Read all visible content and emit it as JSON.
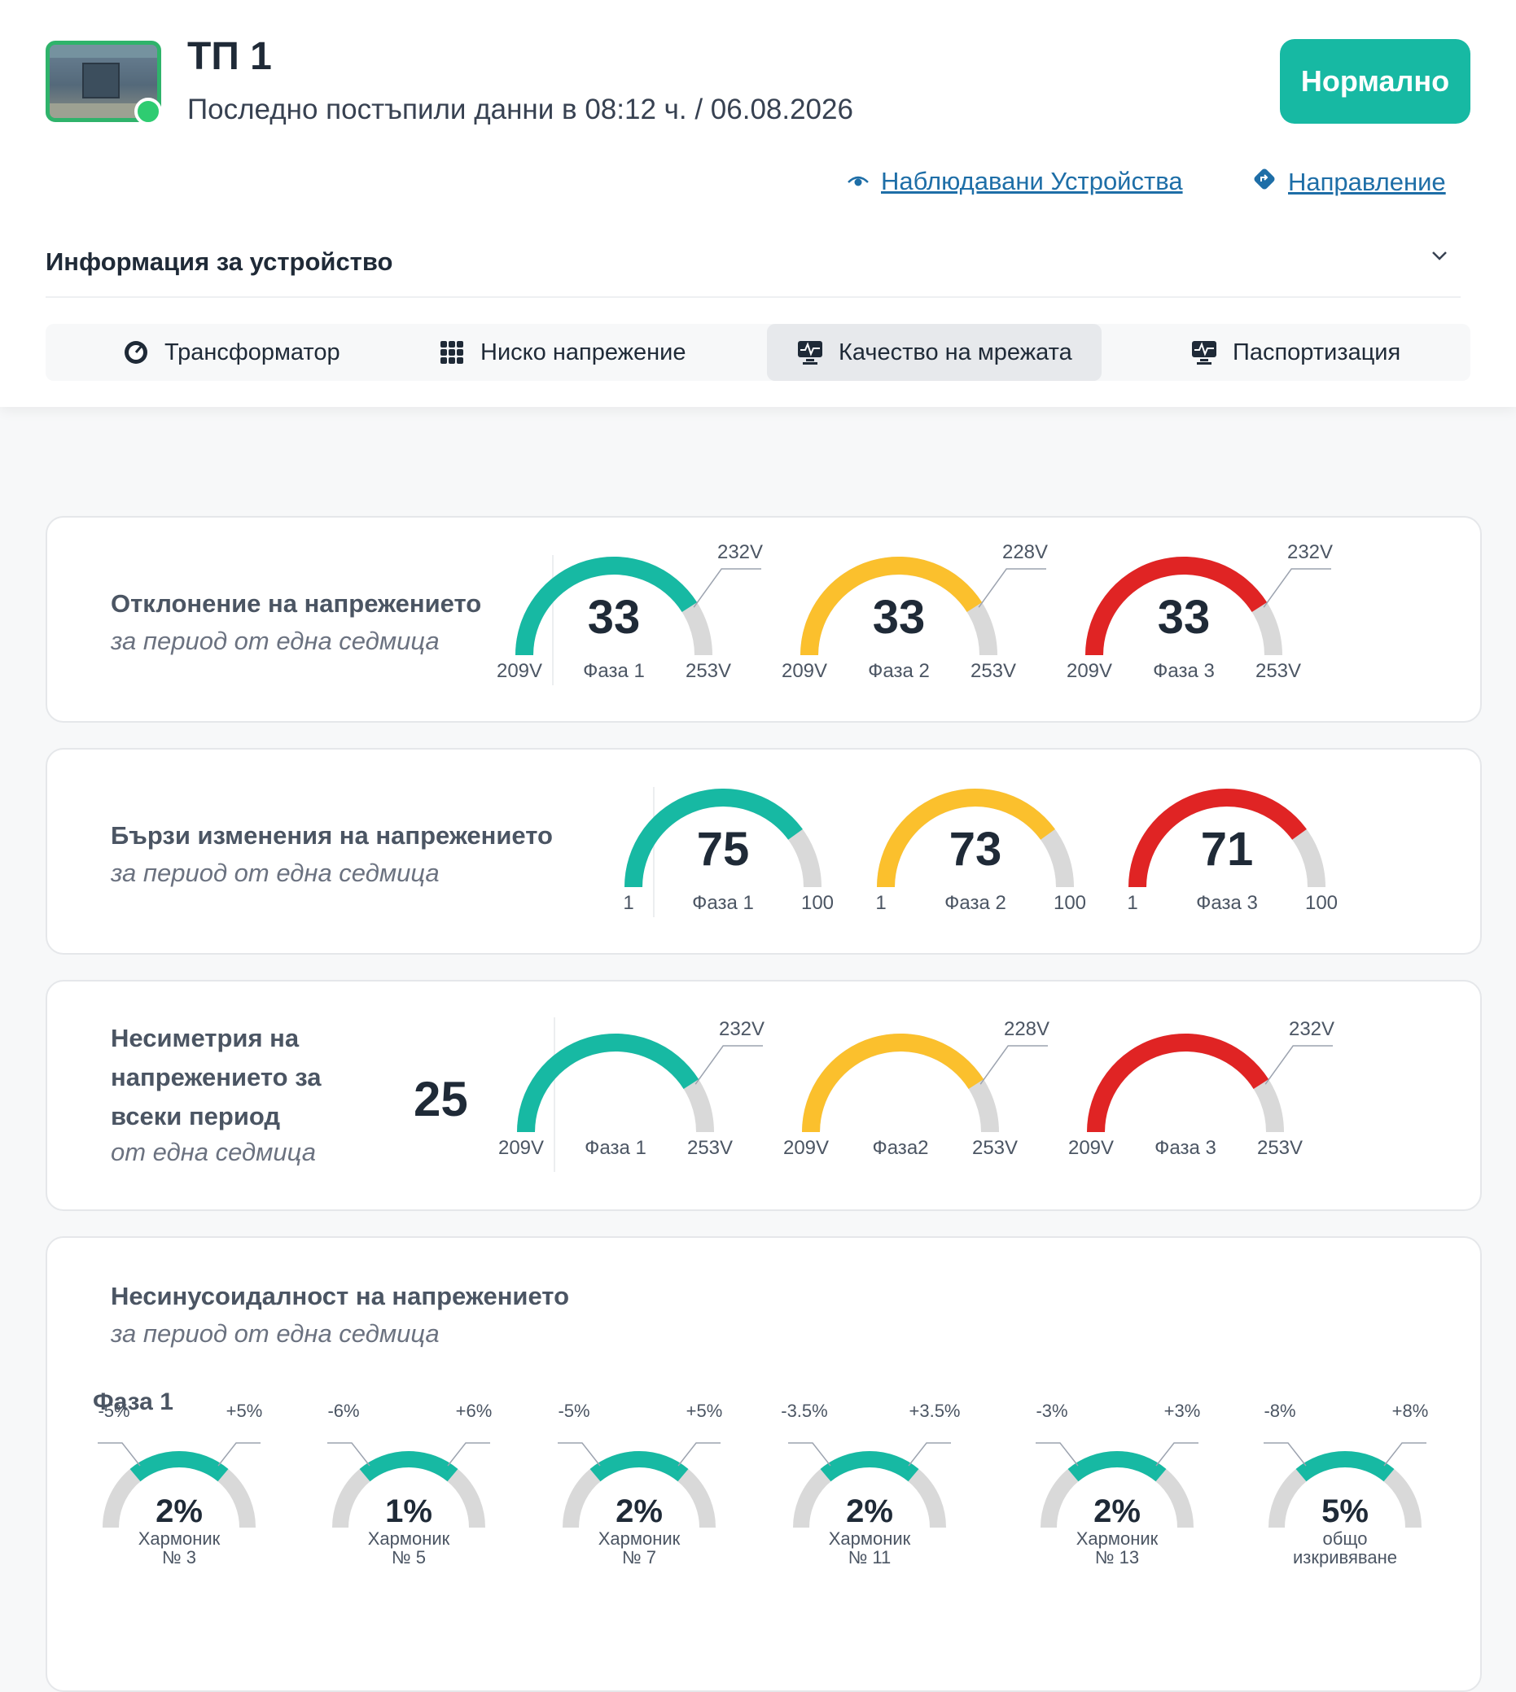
{
  "header": {
    "title": "ТП 1",
    "subtitle": "Последно постъпили данни в 08:12 ч. / 06.08.2026",
    "status_button": "Нормално",
    "links": [
      "Наблюдавани Устройства",
      "Направление"
    ]
  },
  "info": {
    "label": "Информация за устройство"
  },
  "tabs": [
    {
      "label": "Трансформатор"
    },
    {
      "label": "Ниско напрежение"
    },
    {
      "label": "Качество на мрежата"
    },
    {
      "label": "Паспортизация"
    }
  ],
  "colors": {
    "teal": "#17b9a3",
    "yellow": "#fbc02d",
    "red": "#e02424",
    "gray": "#d9d9d9",
    "accent_link": "#1e6ea7"
  },
  "deviation": {
    "title": "Отклонение на напрежението",
    "subtitle": "за период от една седмица",
    "gauges": [
      {
        "value": "33",
        "phase": "Фаза 1",
        "min": "209V",
        "max": "253V",
        "marker": "232V",
        "color": "teal",
        "fill": 0.82
      },
      {
        "value": "33",
        "phase": "Фаза 2",
        "min": "209V",
        "max": "253V",
        "marker": "228V",
        "color": "yellow",
        "fill": 0.82
      },
      {
        "value": "33",
        "phase": "Фаза 3",
        "min": "209V",
        "max": "253V",
        "marker": "232V",
        "color": "red",
        "fill": 0.82
      }
    ]
  },
  "fast_changes": {
    "title": "Бързи изменения на напрежението",
    "subtitle": "за период от една седмица",
    "gauges": [
      {
        "value": "75",
        "phase": "Фаза 1",
        "min": "1",
        "max": "100",
        "color": "teal",
        "fill": 0.8
      },
      {
        "value": "73",
        "phase": "Фаза 2",
        "min": "1",
        "max": "100",
        "color": "yellow",
        "fill": 0.8
      },
      {
        "value": "71",
        "phase": "Фаза 3",
        "min": "1",
        "max": "100",
        "color": "red",
        "fill": 0.8
      }
    ]
  },
  "asymmetry": {
    "title_lines": [
      "Несиметрия на",
      "напрежението за",
      "всеки период"
    ],
    "subtitle": "от една седмица",
    "value": "25",
    "gauges": [
      {
        "phase": "Фаза 1",
        "min": "209V",
        "max": "253V",
        "marker": "232V",
        "color": "teal",
        "fill": 0.82
      },
      {
        "phase": "Фаза2",
        "min": "209V",
        "max": "253V",
        "marker": "228V",
        "color": "yellow",
        "fill": 0.82
      },
      {
        "phase": "Фаза 3",
        "min": "209V",
        "max": "253V",
        "marker": "232V",
        "color": "red",
        "fill": 0.82
      }
    ]
  },
  "harmonics": {
    "title": "Несинусоидалност на напрежението",
    "subtitle": "за период от една седмица",
    "phase_label": "Фаза 1",
    "gauges": [
      {
        "value": "2%",
        "min": "-5%",
        "max": "+5%",
        "line1": "Хармоник",
        "line2": "№ 3"
      },
      {
        "value": "1%",
        "min": "-6%",
        "max": "+6%",
        "line1": "Хармоник",
        "line2": "№ 5"
      },
      {
        "value": "2%",
        "min": "-5%",
        "max": "+5%",
        "line1": "Хармоник",
        "line2": "№ 7"
      },
      {
        "value": "2%",
        "min": "-3.5%",
        "max": "+3.5%",
        "line1": "Хармоник",
        "line2": "№ 11"
      },
      {
        "value": "2%",
        "min": "-3%",
        "max": "+3%",
        "line1": "Хармоник",
        "line2": "№ 13"
      },
      {
        "value": "5%",
        "min": "-8%",
        "max": "+8%",
        "line1": "общо",
        "line2": "изкривяване"
      }
    ]
  }
}
